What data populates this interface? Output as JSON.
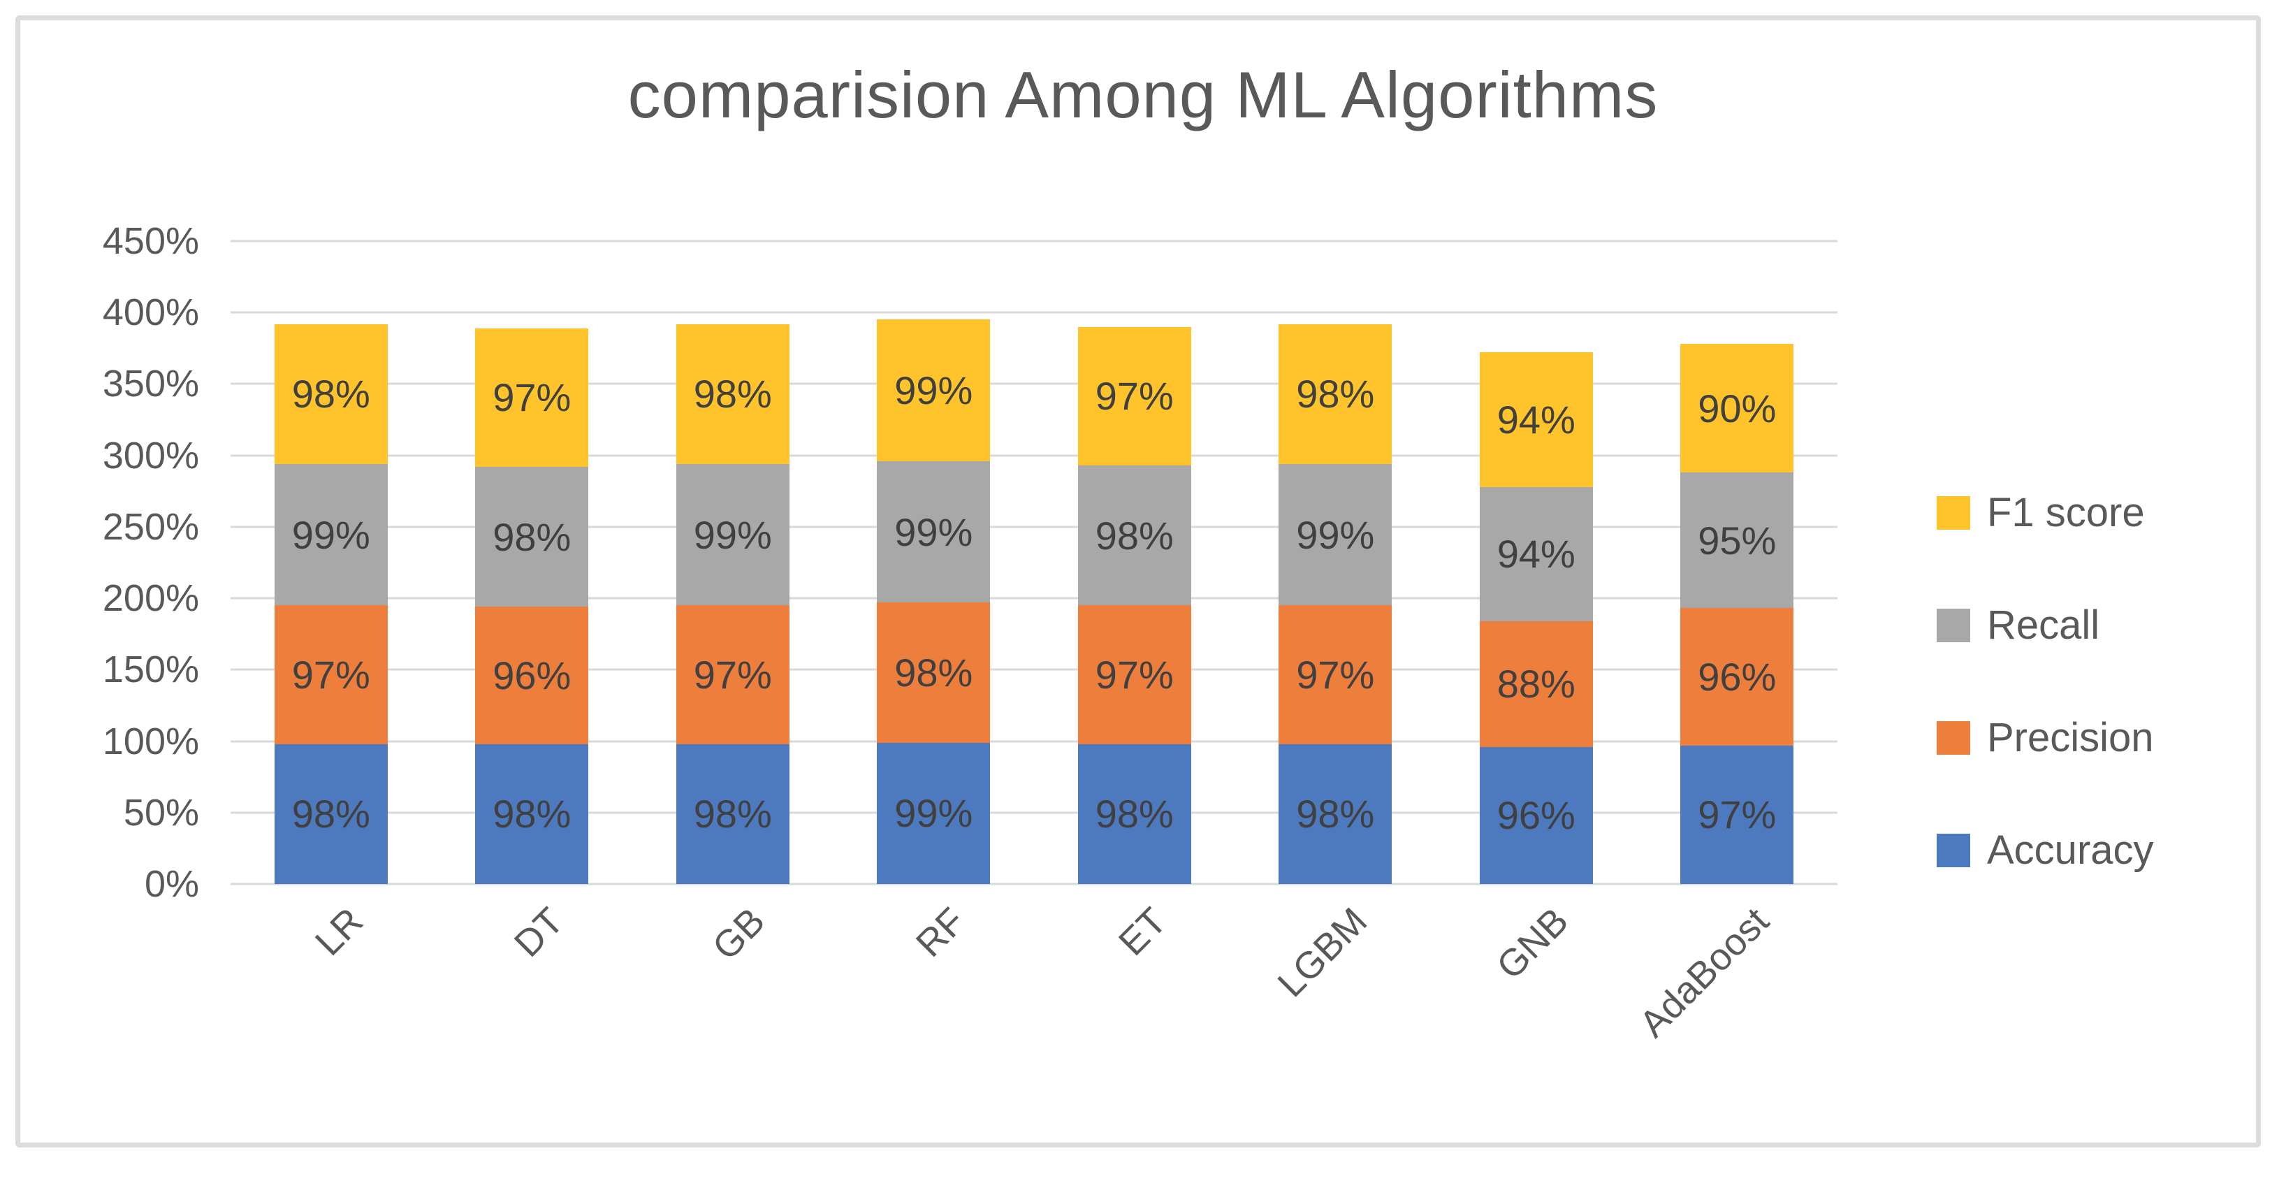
{
  "chart_title": "comparision Among ML Algorithms",
  "chart_data": {
    "type": "bar",
    "stacked": true,
    "title": "comparision Among ML Algorithms",
    "categories": [
      "LR",
      "DT",
      "GB",
      "RF",
      "ET",
      "LGBM",
      "GNB",
      "AdaBoost"
    ],
    "series": [
      {
        "name": "Accuracy",
        "color": "#4d79be",
        "values": [
          98,
          98,
          98,
          99,
          98,
          98,
          96,
          97
        ],
        "labels": [
          "98%",
          "98%",
          "98%",
          "99%",
          "98%",
          "98%",
          "96%",
          "97%"
        ]
      },
      {
        "name": "Precision",
        "color": "#ee7e3c",
        "values": [
          97,
          96,
          97,
          98,
          97,
          97,
          88,
          96
        ],
        "labels": [
          "97%",
          "96%",
          "97%",
          "98%",
          "97%",
          "97%",
          "88%",
          "96%"
        ]
      },
      {
        "name": "Recall",
        "color": "#a8a8a8",
        "values": [
          99,
          98,
          99,
          99,
          98,
          99,
          94,
          95
        ],
        "labels": [
          "99%",
          "98%",
          "99%",
          "99%",
          "98%",
          "99%",
          "94%",
          "95%"
        ]
      },
      {
        "name": "F1 score",
        "color": "#ffc32b",
        "values": [
          98,
          97,
          98,
          99,
          97,
          98,
          94,
          90
        ],
        "labels": [
          "98%",
          "97%",
          "98%",
          "99%",
          "97%",
          "98%",
          "94%",
          "90%"
        ]
      }
    ],
    "y_axis": {
      "min": 0,
      "max": 450,
      "step": 50,
      "tick_labels_top_to_bottom": [
        "450%",
        "400%",
        "350%",
        "300%",
        "250%",
        "200%",
        "150%",
        "100%",
        "50%",
        "0%"
      ]
    },
    "legend": {
      "position": "right",
      "entries_top_to_bottom": [
        "F1 score",
        "Recall",
        "Precision",
        "Accuracy"
      ]
    },
    "grid": true,
    "style": {
      "gridline_color": "#d9d9d9",
      "frame_border_color": "#dcdcde",
      "title_color": "#595959",
      "axis_text_color": "#595959",
      "data_label_color": "#404040",
      "background": "#ffffff"
    }
  }
}
